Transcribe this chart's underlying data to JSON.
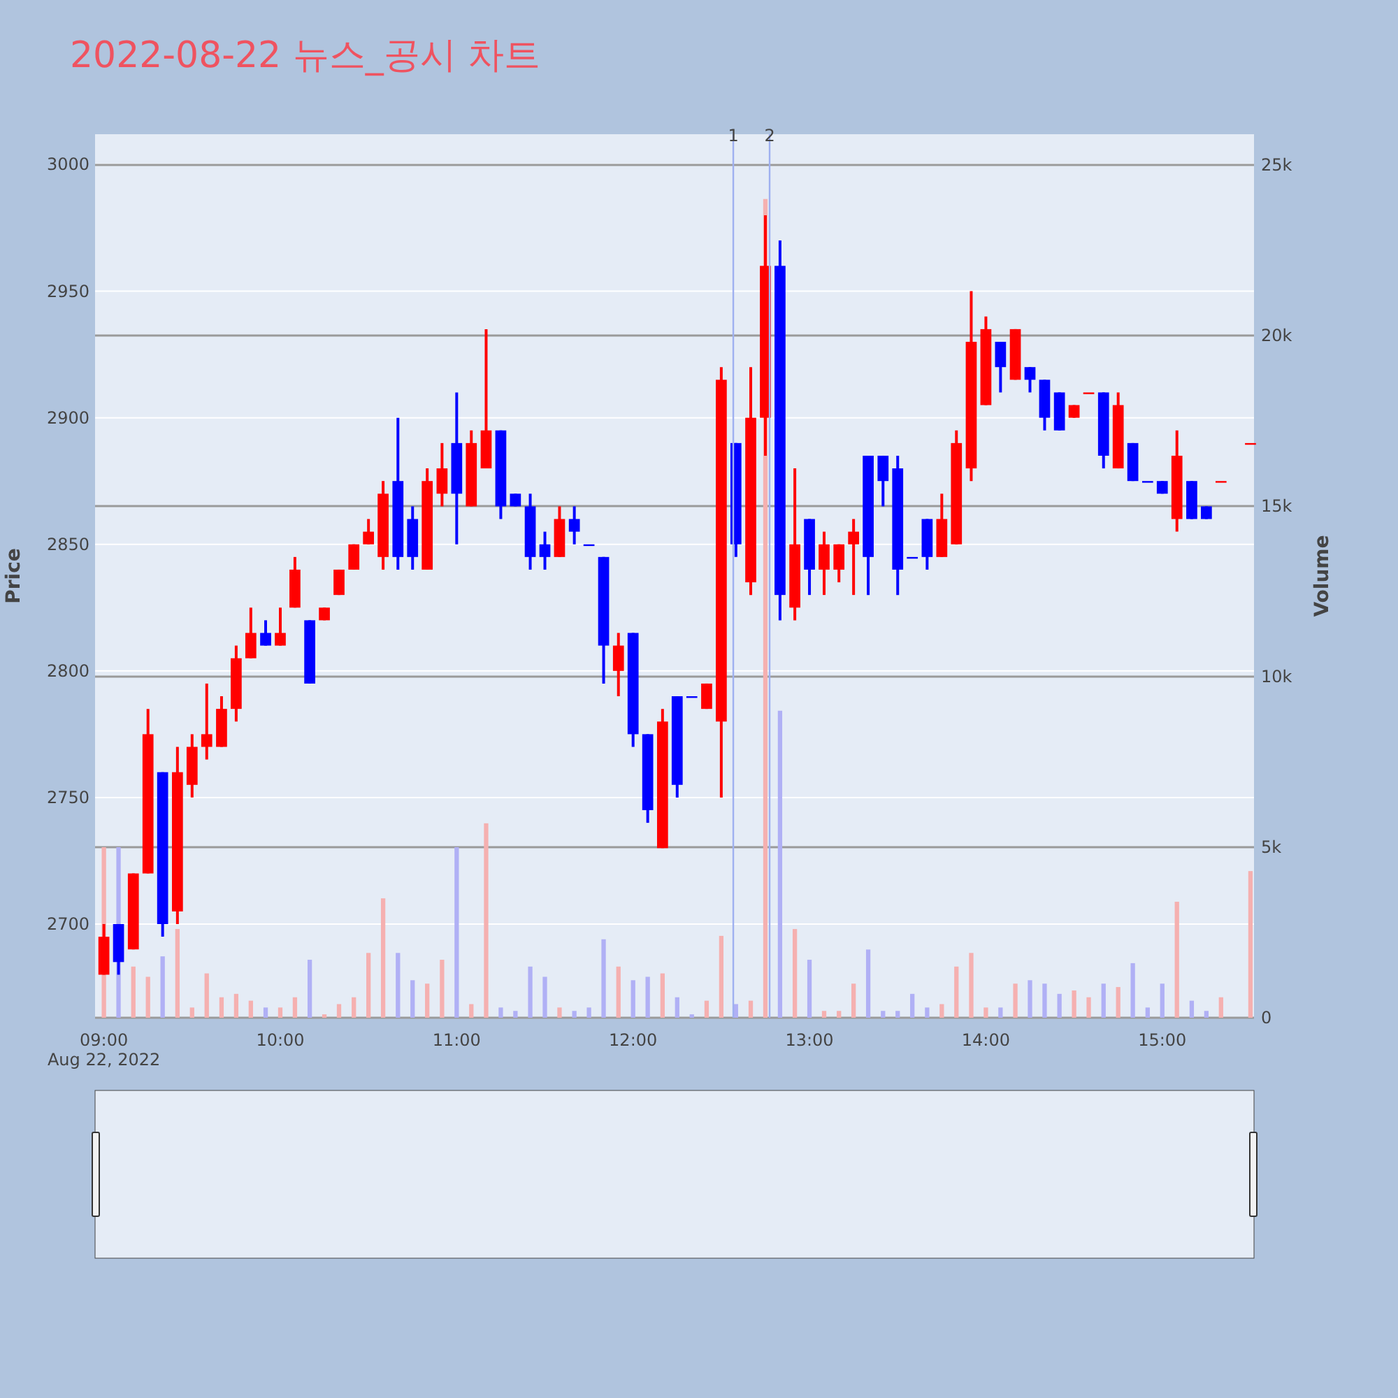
{
  "chart_data": {
    "type": "candlestick",
    "title": "2022-08-22 뉴스_공시 차트",
    "ylabel": "Price",
    "y2label": "Volume",
    "x": [
      9.0,
      9.083,
      9.167,
      9.25,
      9.333,
      9.417,
      9.5,
      9.583,
      9.667,
      9.75,
      9.833,
      9.917,
      10.0,
      10.083,
      10.167,
      10.25,
      10.333,
      10.417,
      10.5,
      10.583,
      10.667,
      10.75,
      10.833,
      10.917,
      11.0,
      11.083,
      11.167,
      11.25,
      11.333,
      11.417,
      11.5,
      11.583,
      11.667,
      11.75,
      11.833,
      11.917,
      12.0,
      12.083,
      12.167,
      12.25,
      12.333,
      12.417,
      12.5,
      12.583,
      12.667,
      12.75,
      12.833,
      12.917,
      13.0,
      13.083,
      13.167,
      13.25,
      13.333,
      13.417,
      13.5,
      13.583,
      13.667,
      13.75,
      13.833,
      13.917,
      14.0,
      14.083,
      14.167,
      14.25,
      14.333,
      14.417,
      14.5,
      14.583,
      14.667,
      14.75,
      14.833,
      14.917,
      15.0,
      15.083,
      15.167,
      15.25,
      15.333,
      15.5
    ],
    "xlim": [
      8.95,
      15.52
    ],
    "xticks": [
      {
        "value": 9,
        "label": "09:00\nAug 22, 2022"
      },
      {
        "value": 10,
        "label": "10:00"
      },
      {
        "value": 11,
        "label": "11:00"
      },
      {
        "value": 12,
        "label": "12:00"
      },
      {
        "value": 13,
        "label": "13:00"
      },
      {
        "value": 14,
        "label": "14:00"
      },
      {
        "value": 15,
        "label": "15:00"
      }
    ],
    "ylim": [
      2663,
      3012
    ],
    "yticks": [
      2700,
      2750,
      2800,
      2850,
      2900,
      2950,
      3000
    ],
    "y2lim": [
      0,
      25900
    ],
    "y2ticks": [
      0,
      {
        "value": 5000,
        "label": "5k"
      },
      {
        "value": 10000,
        "label": "10k"
      },
      {
        "value": 15000,
        "label": "15k"
      },
      {
        "value": 20000,
        "label": "20k"
      },
      {
        "value": 25000,
        "label": "25k"
      }
    ],
    "grid": true,
    "series": [
      {
        "type": "candlestick",
        "ohlc": [
          [
            2680,
            2700,
            2680,
            2695
          ],
          [
            2700,
            2700,
            2680,
            2685
          ],
          [
            2690,
            2720,
            2690,
            2720
          ],
          [
            2720,
            2785,
            2720,
            2775
          ],
          [
            2760,
            2760,
            2695,
            2700
          ],
          [
            2705,
            2770,
            2700,
            2760
          ],
          [
            2755,
            2775,
            2750,
            2770
          ],
          [
            2770,
            2795,
            2765,
            2775
          ],
          [
            2770,
            2790,
            2770,
            2785
          ],
          [
            2785,
            2810,
            2780,
            2805
          ],
          [
            2805,
            2825,
            2805,
            2815
          ],
          [
            2815,
            2820,
            2810,
            2810
          ],
          [
            2810,
            2825,
            2810,
            2815
          ],
          [
            2825,
            2845,
            2825,
            2840
          ],
          [
            2820,
            2820,
            2795,
            2795
          ],
          [
            2820,
            2825,
            2820,
            2825
          ],
          [
            2830,
            2840,
            2830,
            2840
          ],
          [
            2840,
            2850,
            2840,
            2850
          ],
          [
            2850,
            2860,
            2850,
            2855
          ],
          [
            2845,
            2875,
            2840,
            2870
          ],
          [
            2875,
            2900,
            2840,
            2845
          ],
          [
            2860,
            2865,
            2840,
            2845
          ],
          [
            2840,
            2880,
            2840,
            2875
          ],
          [
            2870,
            2890,
            2865,
            2880
          ],
          [
            2890,
            2910,
            2850,
            2870
          ],
          [
            2865,
            2895,
            2865,
            2890
          ],
          [
            2880,
            2935,
            2880,
            2895
          ],
          [
            2895,
            2895,
            2860,
            2865
          ],
          [
            2870,
            2870,
            2865,
            2865
          ],
          [
            2865,
            2870,
            2840,
            2845
          ],
          [
            2850,
            2855,
            2840,
            2845
          ],
          [
            2845,
            2865,
            2845,
            2860
          ],
          [
            2860,
            2865,
            2850,
            2855
          ],
          [
            2850,
            2850,
            2850,
            2850
          ],
          [
            2845,
            2845,
            2795,
            2810
          ],
          [
            2800,
            2815,
            2790,
            2810
          ],
          [
            2815,
            2815,
            2770,
            2775
          ],
          [
            2775,
            2775,
            2740,
            2745
          ],
          [
            2730,
            2785,
            2730,
            2780
          ],
          [
            2790,
            2790,
            2750,
            2755
          ],
          [
            2790,
            2790,
            2790,
            2790
          ],
          [
            2785,
            2795,
            2785,
            2795
          ],
          [
            2780,
            2920,
            2750,
            2915
          ],
          [
            2890,
            2890,
            2845,
            2850
          ],
          [
            2835,
            2920,
            2830,
            2900
          ],
          [
            2900,
            2980,
            2885,
            2960
          ],
          [
            2960,
            2970,
            2820,
            2830
          ],
          [
            2825,
            2880,
            2820,
            2850
          ],
          [
            2860,
            2860,
            2830,
            2840
          ],
          [
            2840,
            2855,
            2830,
            2850
          ],
          [
            2840,
            2850,
            2835,
            2850
          ],
          [
            2850,
            2860,
            2830,
            2855
          ],
          [
            2885,
            2885,
            2830,
            2845
          ],
          [
            2885,
            2885,
            2865,
            2875
          ],
          [
            2880,
            2885,
            2830,
            2840
          ],
          [
            2845,
            2845,
            2845,
            2845
          ],
          [
            2860,
            2860,
            2840,
            2845
          ],
          [
            2845,
            2870,
            2845,
            2860
          ],
          [
            2850,
            2895,
            2850,
            2890
          ],
          [
            2880,
            2950,
            2875,
            2930
          ],
          [
            2905,
            2940,
            2905,
            2935
          ],
          [
            2930,
            2930,
            2910,
            2920
          ],
          [
            2915,
            2935,
            2915,
            2935
          ],
          [
            2920,
            2920,
            2910,
            2915
          ],
          [
            2915,
            2915,
            2895,
            2900
          ],
          [
            2910,
            2910,
            2895,
            2895
          ],
          [
            2900,
            2905,
            2900,
            2905
          ],
          [
            2910,
            2910,
            2910,
            2910
          ],
          [
            2910,
            2910,
            2880,
            2885
          ],
          [
            2880,
            2910,
            2880,
            2905
          ],
          [
            2890,
            2890,
            2875,
            2875
          ],
          [
            2875,
            2875,
            2875,
            2875
          ],
          [
            2875,
            2875,
            2870,
            2870
          ],
          [
            2860,
            2895,
            2855,
            2885
          ],
          [
            2875,
            2875,
            2860,
            2860
          ],
          [
            2865,
            2865,
            2860,
            2860
          ],
          [
            2875,
            2875,
            2875,
            2875
          ],
          [
            2890,
            2890,
            2890,
            2890
          ]
        ],
        "colors": [
          "#ff0000",
          "#0000ff",
          "#ff0000",
          "#ff0000",
          "#0000ff",
          "#ff0000",
          "#ff0000",
          "#ff0000",
          "#ff0000",
          "#ff0000",
          "#ff0000",
          "#0000ff",
          "#ff0000",
          "#ff0000",
          "#0000ff",
          "#ff0000",
          "#ff0000",
          "#ff0000",
          "#ff0000",
          "#ff0000",
          "#0000ff",
          "#0000ff",
          "#ff0000",
          "#ff0000",
          "#0000ff",
          "#ff0000",
          "#ff0000",
          "#0000ff",
          "#0000ff",
          "#0000ff",
          "#0000ff",
          "#ff0000",
          "#0000ff",
          "#0000ff",
          "#0000ff",
          "#ff0000",
          "#0000ff",
          "#0000ff",
          "#ff0000",
          "#0000ff",
          "#0000ff",
          "#ff0000",
          "#ff0000",
          "#0000ff",
          "#ff0000",
          "#ff0000",
          "#0000ff",
          "#ff0000",
          "#0000ff",
          "#ff0000",
          "#ff0000",
          "#ff0000",
          "#0000ff",
          "#0000ff",
          "#0000ff",
          "#0000ff",
          "#0000ff",
          "#ff0000",
          "#ff0000",
          "#ff0000",
          "#ff0000",
          "#0000ff",
          "#ff0000",
          "#0000ff",
          "#0000ff",
          "#0000ff",
          "#ff0000",
          "#ff0000",
          "#0000ff",
          "#ff0000",
          "#0000ff",
          "#0000ff",
          "#0000ff",
          "#ff0000",
          "#0000ff",
          "#0000ff",
          "#ff0000",
          "#ff0000"
        ]
      },
      {
        "type": "bar",
        "axis": "y2",
        "values": [
          5000,
          5000,
          1500,
          1200,
          1800,
          2600,
          300,
          1300,
          600,
          700,
          500,
          300,
          300,
          600,
          1700,
          100,
          400,
          600,
          1900,
          3500,
          1900,
          1100,
          1000,
          1700,
          5000,
          400,
          5700,
          300,
          200,
          1500,
          1200,
          300,
          200,
          300,
          2300,
          1500,
          1100,
          1200,
          1300,
          600,
          100,
          500,
          2400,
          400,
          500,
          24000,
          9000,
          2600,
          1700,
          200,
          200,
          1000,
          2000,
          200,
          200,
          700,
          300,
          400,
          1500,
          1900,
          300,
          300,
          1000,
          1100,
          1000,
          700,
          800,
          600,
          1000,
          900,
          1600,
          300,
          1000,
          3400,
          500,
          200,
          600,
          4300
        ],
        "colors": [
          "#f5b0b0",
          "#b0b0f5",
          "#f5b0b0",
          "#f5b0b0",
          "#b0b0f5",
          "#f5b0b0",
          "#f5b0b0",
          "#f5b0b0",
          "#f5b0b0",
          "#f5b0b0",
          "#f5b0b0",
          "#b0b0f5",
          "#f5b0b0",
          "#f5b0b0",
          "#b0b0f5",
          "#f5b0b0",
          "#f5b0b0",
          "#f5b0b0",
          "#f5b0b0",
          "#f5b0b0",
          "#b0b0f5",
          "#b0b0f5",
          "#f5b0b0",
          "#f5b0b0",
          "#b0b0f5",
          "#f5b0b0",
          "#f5b0b0",
          "#b0b0f5",
          "#b0b0f5",
          "#b0b0f5",
          "#b0b0f5",
          "#f5b0b0",
          "#b0b0f5",
          "#b0b0f5",
          "#b0b0f5",
          "#f5b0b0",
          "#b0b0f5",
          "#b0b0f5",
          "#f5b0b0",
          "#b0b0f5",
          "#b0b0f5",
          "#f5b0b0",
          "#f5b0b0",
          "#b0b0f5",
          "#f5b0b0",
          "#f5b0b0",
          "#b0b0f5",
          "#f5b0b0",
          "#b0b0f5",
          "#f5b0b0",
          "#f5b0b0",
          "#f5b0b0",
          "#b0b0f5",
          "#b0b0f5",
          "#b0b0f5",
          "#b0b0f5",
          "#b0b0f5",
          "#f5b0b0",
          "#f5b0b0",
          "#f5b0b0",
          "#f5b0b0",
          "#b0b0f5",
          "#f5b0b0",
          "#b0b0f5",
          "#b0b0f5",
          "#b0b0f5",
          "#f5b0b0",
          "#f5b0b0",
          "#b0b0f5",
          "#f5b0b0",
          "#b0b0f5",
          "#b0b0f5",
          "#b0b0f5",
          "#f5b0b0",
          "#b0b0f5",
          "#b0b0f5",
          "#f5b0b0",
          "#f5b0b0"
        ]
      }
    ],
    "ref_lines": [
      {
        "axis": "x",
        "value": 12.568,
        "color": "#9fb0f0"
      },
      {
        "axis": "x",
        "value": 12.774,
        "color": "#9fb0f0"
      }
    ],
    "annotations": [
      {
        "text": "1",
        "x": 12.568,
        "y": 3012
      },
      {
        "text": "2",
        "x": 12.774,
        "y": 3012
      }
    ]
  }
}
